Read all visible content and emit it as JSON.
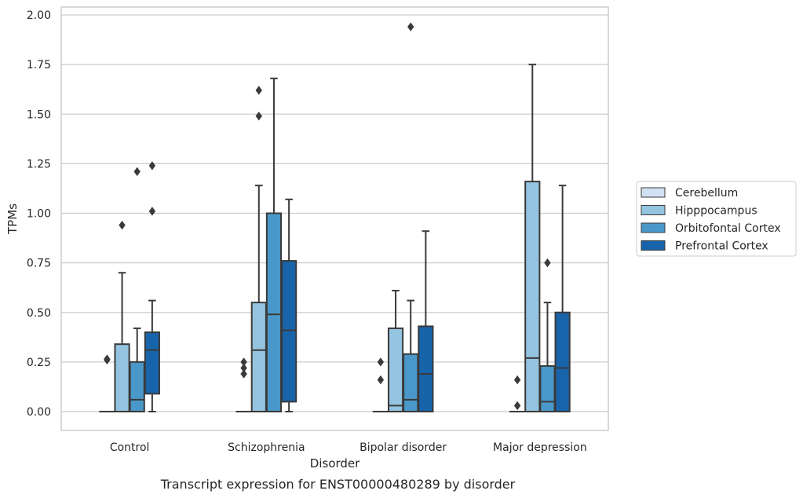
{
  "chart_data": {
    "type": "box",
    "caption": "Transcript expression for ENST00000480289 by disorder",
    "xlabel": "Disorder",
    "ylabel": "TPMs",
    "ylim": [
      -0.1,
      2.03
    ],
    "yticks": [
      "0.00",
      "0.25",
      "0.50",
      "0.75",
      "1.00",
      "1.25",
      "1.50",
      "1.75",
      "2.00"
    ],
    "grid": "horizontal",
    "legend_position": "right",
    "categories": [
      "Control",
      "Schizophrenia",
      "Bipolar disorder",
      "Major depression"
    ],
    "series": [
      {
        "name": "Cerebellum",
        "color": "#d0e1f2",
        "boxes": [
          {
            "q1": 0,
            "median": 0,
            "q3": 0,
            "whisker_low": 0,
            "whisker_high": 0,
            "outliers": [
              0.26,
              0.265
            ]
          },
          {
            "q1": 0,
            "median": 0,
            "q3": 0,
            "whisker_low": 0,
            "whisker_high": 0,
            "outliers": [
              0.19,
              0.22,
              0.25
            ]
          },
          {
            "q1": 0,
            "median": 0,
            "q3": 0,
            "whisker_low": 0,
            "whisker_high": 0,
            "outliers": [
              0.16,
              0.25
            ]
          },
          {
            "q1": 0,
            "median": 0,
            "q3": 0,
            "whisker_low": 0,
            "whisker_high": 0,
            "outliers": [
              0.03,
              0.16
            ]
          }
        ]
      },
      {
        "name": "Hipppocampus",
        "color": "#94c4df",
        "boxes": [
          {
            "q1": 0,
            "median": 0,
            "q3": 0.34,
            "whisker_low": 0,
            "whisker_high": 0.7,
            "outliers": [
              0.94
            ]
          },
          {
            "q1": 0,
            "median": 0.31,
            "q3": 0.55,
            "whisker_low": 0,
            "whisker_high": 1.14,
            "outliers": [
              1.49,
              1.62
            ]
          },
          {
            "q1": 0,
            "median": 0.03,
            "q3": 0.42,
            "whisker_low": 0,
            "whisker_high": 0.61,
            "outliers": []
          },
          {
            "q1": 0,
            "median": 0.27,
            "q3": 1.16,
            "whisker_low": 0,
            "whisker_high": 1.75,
            "outliers": []
          }
        ]
      },
      {
        "name": "Orbitofontal Cortex",
        "color": "#4a98c9",
        "boxes": [
          {
            "q1": 0,
            "median": 0.06,
            "q3": 0.25,
            "whisker_low": 0,
            "whisker_high": 0.42,
            "outliers": [
              1.21
            ]
          },
          {
            "q1": 0,
            "median": 0.49,
            "q3": 1.0,
            "whisker_low": 0,
            "whisker_high": 1.68,
            "outliers": []
          },
          {
            "q1": 0,
            "median": 0.06,
            "q3": 0.29,
            "whisker_low": 0,
            "whisker_high": 0.56,
            "outliers": [
              1.94
            ]
          },
          {
            "q1": 0,
            "median": 0.05,
            "q3": 0.23,
            "whisker_low": 0,
            "whisker_high": 0.55,
            "outliers": [
              0.75
            ]
          }
        ]
      },
      {
        "name": "Prefrontal Cortex",
        "color": "#1764ab",
        "boxes": [
          {
            "q1": 0.09,
            "median": 0.31,
            "q3": 0.4,
            "whisker_low": 0,
            "whisker_high": 0.56,
            "outliers": [
              1.01,
              1.24
            ]
          },
          {
            "q1": 0.05,
            "median": 0.41,
            "q3": 0.76,
            "whisker_low": 0,
            "whisker_high": 1.07,
            "outliers": []
          },
          {
            "q1": 0,
            "median": 0.19,
            "q3": 0.43,
            "whisker_low": 0,
            "whisker_high": 0.91,
            "outliers": []
          },
          {
            "q1": 0,
            "median": 0.22,
            "q3": 0.5,
            "whisker_low": 0,
            "whisker_high": 1.14,
            "outliers": []
          }
        ]
      }
    ]
  }
}
